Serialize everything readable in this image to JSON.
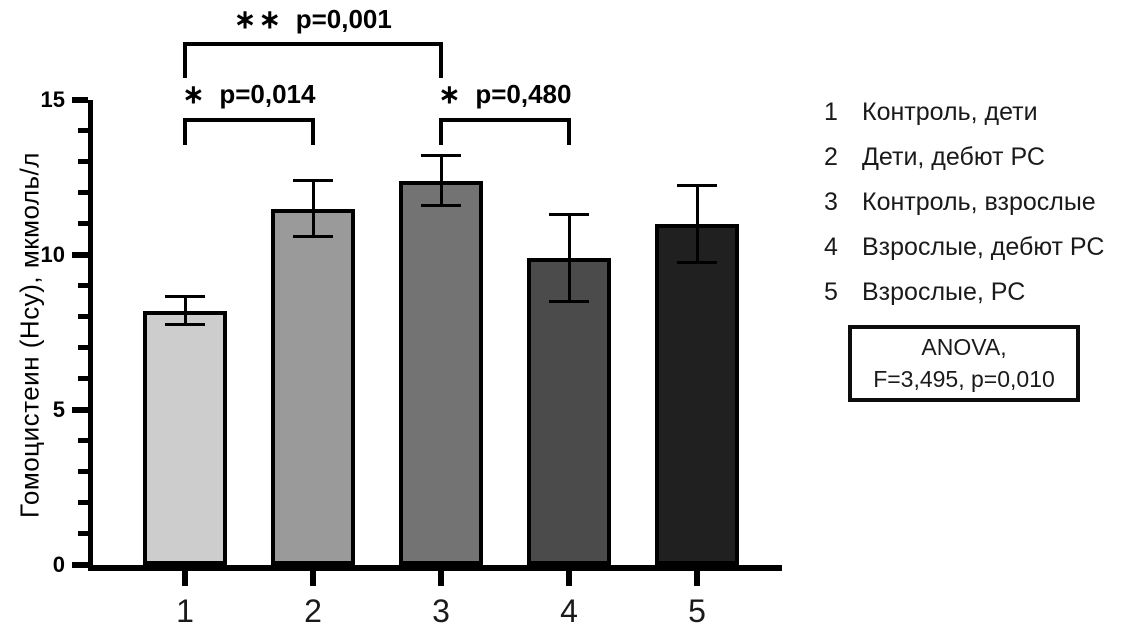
{
  "chart_data": {
    "type": "bar",
    "title": "",
    "xlabel": "",
    "ylabel": "Гомоцистеин (Hcy), мкмоль/л",
    "ylim": [
      0,
      15
    ],
    "yticks_major": [
      0,
      5,
      10,
      15
    ],
    "minor_tick_step": 1,
    "grid": false,
    "categories": [
      "1",
      "2",
      "3",
      "4",
      "5"
    ],
    "values": [
      8.2,
      11.5,
      12.4,
      9.9,
      11.0
    ],
    "errors": [
      0.45,
      0.9,
      0.8,
      1.4,
      1.25
    ],
    "bar_colors": [
      "#cdcdcd",
      "#9a9a9a",
      "#737373",
      "#4b4b4b",
      "#202020"
    ],
    "significance": [
      {
        "pair": [
          1,
          2
        ],
        "stars": "∗",
        "p_label": "p=0,014",
        "row": 1
      },
      {
        "pair": [
          1,
          3
        ],
        "stars": "∗∗",
        "p_label": "p=0,001",
        "row": 2
      },
      {
        "pair": [
          3,
          4
        ],
        "stars": "∗",
        "p_label": "p=0,480",
        "row": 1
      }
    ]
  },
  "legend": {
    "items": [
      {
        "num": "1",
        "label": "Контроль, дети"
      },
      {
        "num": "2",
        "label": "Дети, дебют РС"
      },
      {
        "num": "3",
        "label": "Контроль, взрослые"
      },
      {
        "num": "4",
        "label": "Взрослые, дебют РС"
      },
      {
        "num": "5",
        "label": "Взрослые, РС"
      }
    ]
  },
  "anova_box": {
    "line1": "ANOVA,",
    "line2": "F=3,495, p=0,010"
  }
}
